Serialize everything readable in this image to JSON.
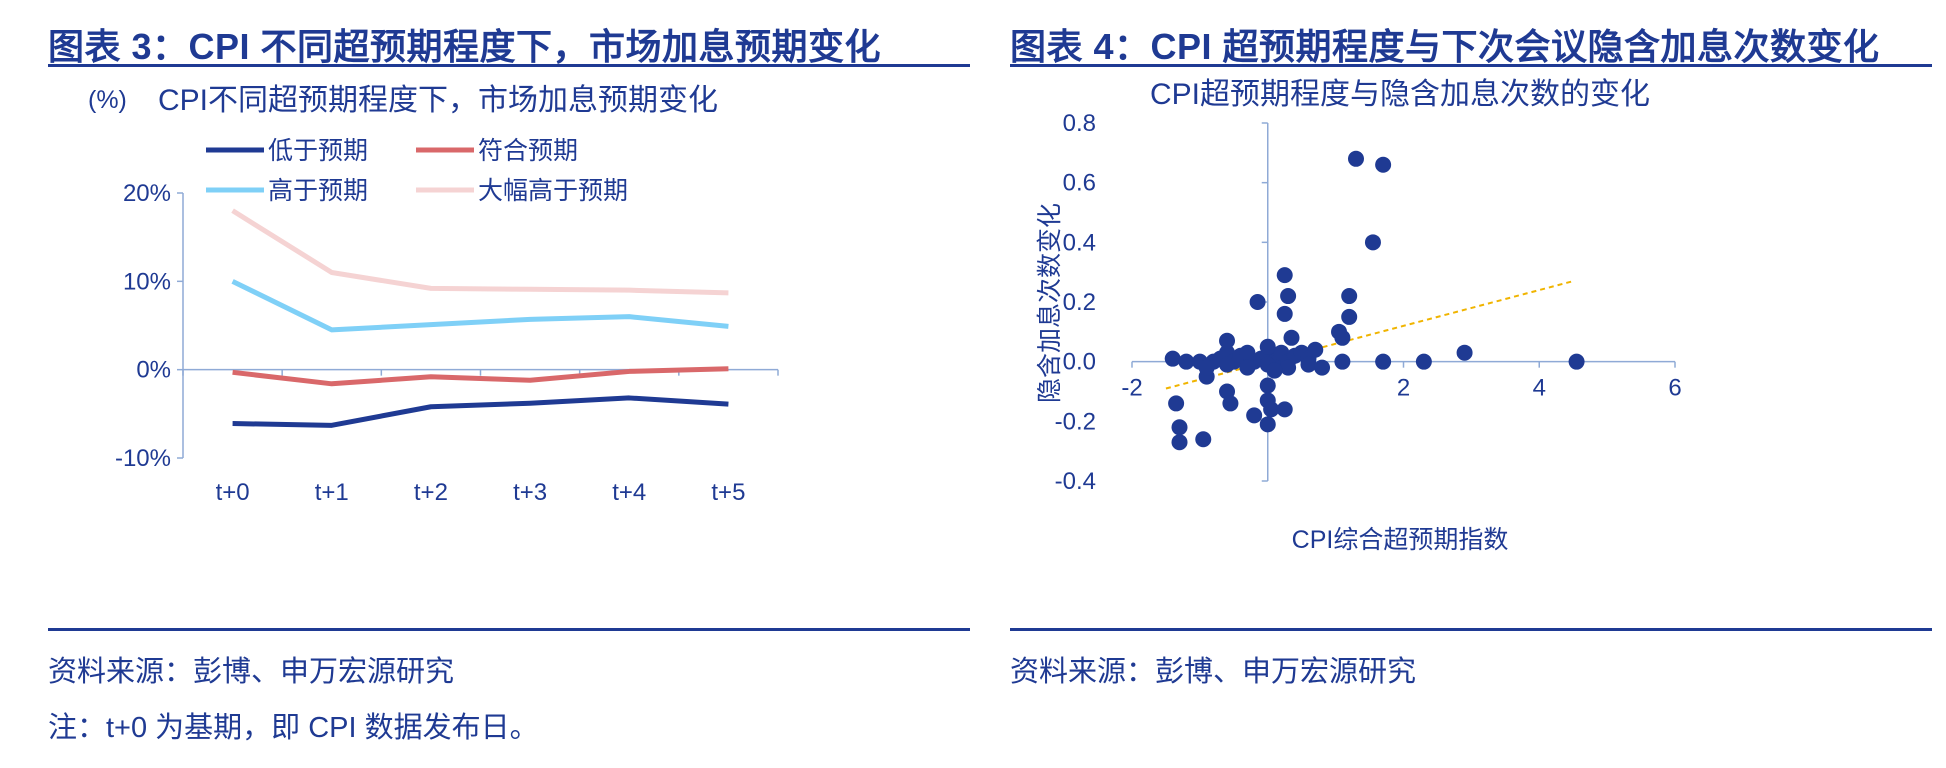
{
  "left": {
    "figure_title": "图表 3：CPI 不同超预期程度下，市场加息预期变化",
    "source": "资料来源：彭博、申万宏源研究",
    "note": "注：t+0 为基期，即 CPI 数据发布日。"
  },
  "right": {
    "figure_title": "图表 4：CPI 超预期程度与下次会议隐含加息次数变化",
    "source": "资料来源：彭博、申万宏源研究"
  },
  "chart_data": [
    {
      "type": "line",
      "title": "CPI不同超预期程度下，市场加息预期变化",
      "ylabel": "(%)",
      "xlabel": "",
      "categories": [
        "t+0",
        "t+1",
        "t+2",
        "t+3",
        "t+4",
        "t+5"
      ],
      "ylim": [
        -10,
        20
      ],
      "yticks": [
        -10,
        0,
        10,
        20
      ],
      "ytick_labels": [
        "-10%",
        "0%",
        "10%",
        "20%"
      ],
      "legend_position": "top",
      "grid": false,
      "series": [
        {
          "name": "低于预期",
          "color": "#1f3a93",
          "values": [
            -6.1,
            -6.3,
            -4.2,
            -3.8,
            -3.2,
            -3.9
          ]
        },
        {
          "name": "符合预期",
          "color": "#d9686a",
          "values": [
            -0.3,
            -1.6,
            -0.8,
            -1.2,
            -0.2,
            0.1
          ]
        },
        {
          "name": "高于预期",
          "color": "#7fd0f7",
          "values": [
            10.0,
            4.5,
            5.1,
            5.7,
            6.0,
            4.9
          ]
        },
        {
          "name": "大幅高于预期",
          "color": "#f5d3d3",
          "values": [
            18.0,
            11.0,
            9.2,
            9.1,
            9.0,
            8.7
          ]
        }
      ]
    },
    {
      "type": "scatter",
      "title": "CPI超预期程度与隐含加息次数的变化",
      "xlabel": "CPI综合超预期指数",
      "ylabel": "隐含加息次数变化",
      "xlim": [
        -2,
        6
      ],
      "ylim": [
        -0.4,
        0.8
      ],
      "xticks": [
        -2,
        2,
        4,
        6
      ],
      "yticks": [
        -0.4,
        -0.2,
        0.0,
        0.2,
        0.4,
        0.6,
        0.8
      ],
      "ytick_labels": [
        "-0.4",
        "-0.2",
        "0.0",
        "0.2",
        "0.4",
        "0.6",
        "0.8"
      ],
      "point_color": "#1f3a93",
      "trendline": {
        "color": "#f0b400",
        "x": [
          -1.5,
          4.5
        ],
        "y": [
          -0.09,
          0.27
        ]
      },
      "points": [
        [
          -1.4,
          0.01
        ],
        [
          -1.2,
          0.0
        ],
        [
          -1.0,
          0.0
        ],
        [
          -0.9,
          -0.05
        ],
        [
          -0.8,
          0.0
        ],
        [
          -0.7,
          0.01
        ],
        [
          -0.6,
          0.03
        ],
        [
          -0.5,
          0.0
        ],
        [
          -0.4,
          0.02
        ],
        [
          -0.3,
          0.03
        ],
        [
          -0.2,
          0.0
        ],
        [
          -0.1,
          0.01
        ],
        [
          0.0,
          0.02
        ],
        [
          0.1,
          0.0
        ],
        [
          0.2,
          0.03
        ],
        [
          0.3,
          0.0
        ],
        [
          0.4,
          0.02
        ],
        [
          0.5,
          0.03
        ],
        [
          0.6,
          0.01
        ],
        [
          0.7,
          0.04
        ],
        [
          -0.9,
          -0.02
        ],
        [
          -0.6,
          -0.01
        ],
        [
          -0.3,
          -0.02
        ],
        [
          0.0,
          -0.01
        ],
        [
          0.3,
          -0.02
        ],
        [
          0.6,
          -0.01
        ],
        [
          0.8,
          -0.02
        ],
        [
          -1.35,
          -0.14
        ],
        [
          -1.3,
          -0.22
        ],
        [
          -1.3,
          -0.27
        ],
        [
          -0.95,
          -0.26
        ],
        [
          -0.6,
          -0.1
        ],
        [
          -0.55,
          -0.14
        ],
        [
          -0.2,
          -0.18
        ],
        [
          0.0,
          -0.08
        ],
        [
          0.0,
          -0.13
        ],
        [
          0.0,
          -0.21
        ],
        [
          0.05,
          -0.16
        ],
        [
          0.1,
          -0.03
        ],
        [
          0.25,
          -0.16
        ],
        [
          -0.6,
          0.07
        ],
        [
          -0.15,
          0.2
        ],
        [
          0.25,
          0.29
        ],
        [
          0.25,
          0.16
        ],
        [
          0.3,
          0.22
        ],
        [
          0.35,
          0.08
        ],
        [
          0.0,
          0.05
        ],
        [
          1.05,
          0.1
        ],
        [
          1.1,
          0.08
        ],
        [
          1.1,
          0.0
        ],
        [
          1.2,
          0.15
        ],
        [
          1.2,
          0.22
        ],
        [
          1.3,
          0.68
        ],
        [
          1.55,
          0.4
        ],
        [
          1.7,
          0.66
        ],
        [
          1.7,
          0.0
        ],
        [
          2.3,
          0.0
        ],
        [
          2.9,
          0.03
        ],
        [
          4.55,
          0.0
        ]
      ]
    }
  ]
}
